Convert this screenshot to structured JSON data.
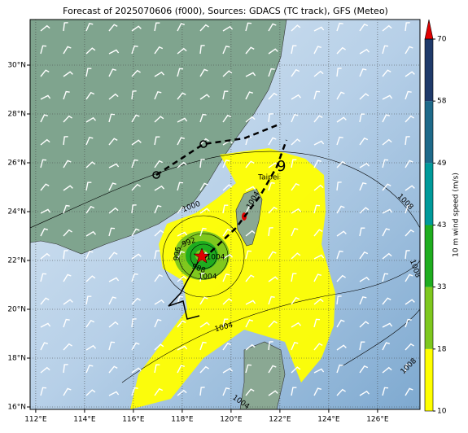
{
  "title": "Forecast of 2025070606 (f000), Sources: GDACS (TC track), GFS (Meteo)",
  "map": {
    "lon_ticks": [
      {
        "value": 112,
        "label": "112°E"
      },
      {
        "value": 114,
        "label": "114°E"
      },
      {
        "value": 116,
        "label": "116°E"
      },
      {
        "value": 118,
        "label": "118°E"
      },
      {
        "value": 120,
        "label": "120°E"
      },
      {
        "value": 122,
        "label": "122°E"
      },
      {
        "value": 124,
        "label": "124°E"
      },
      {
        "value": 126,
        "label": "126°E"
      }
    ],
    "lat_ticks": [
      {
        "value": 16,
        "label": "16°N"
      },
      {
        "value": 18,
        "label": "18°N"
      },
      {
        "value": 20,
        "label": "20°N"
      },
      {
        "value": 22,
        "label": "22°N"
      },
      {
        "value": 24,
        "label": "24°N"
      },
      {
        "value": 26,
        "label": "26°N"
      },
      {
        "value": 28,
        "label": "28°N"
      },
      {
        "value": 30,
        "label": "30°N"
      }
    ],
    "city": "Taipei",
    "contour_labels": [
      "1000",
      "1004",
      "1008",
      "1008",
      "1004",
      "996",
      "992",
      "988",
      "1004",
      "1008",
      "1004",
      "1004"
    ]
  },
  "colorbar": {
    "label": "10 m wind speed (m/s)",
    "ticks": [
      10,
      18,
      33,
      43,
      49,
      58,
      70
    ],
    "colors": [
      "#ffff00",
      "#7fc81e",
      "#1fad1f",
      "#009a9a",
      "#1e6a8a",
      "#1f3a6a"
    ],
    "over_color": "#e00000"
  }
}
